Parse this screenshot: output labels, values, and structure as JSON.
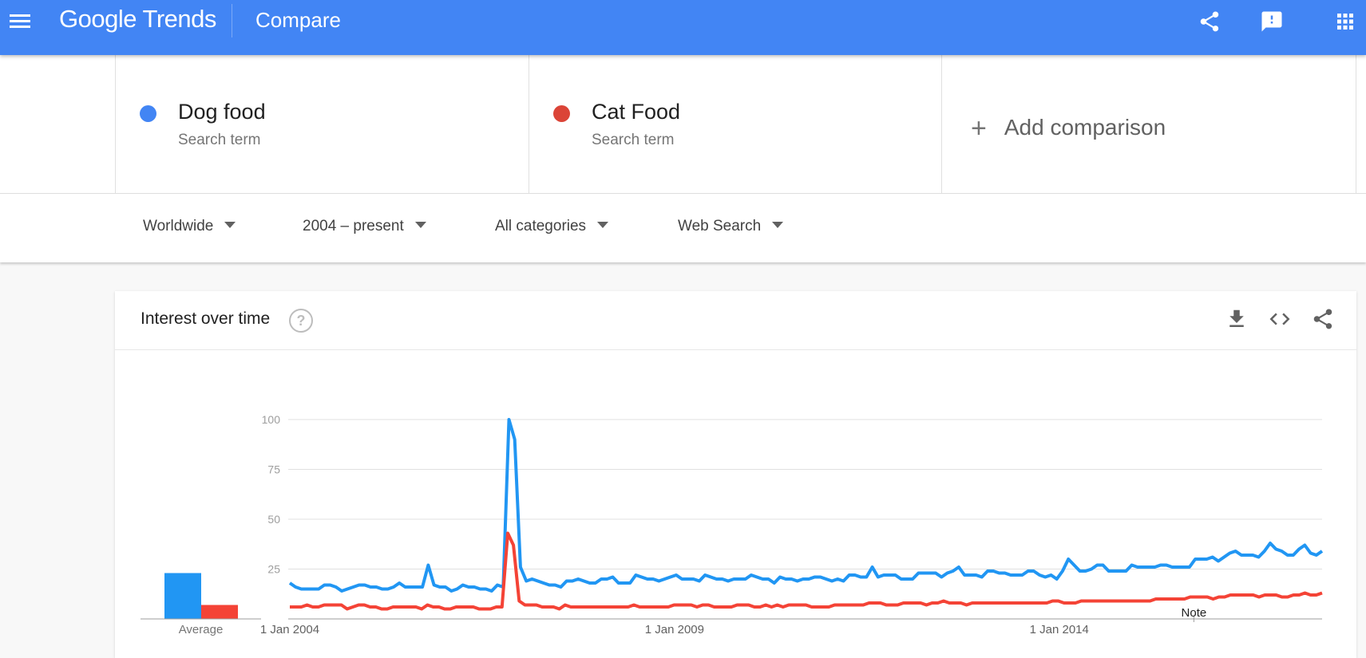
{
  "header": {
    "logo_google": "Google",
    "logo_trends": "Trends",
    "title": "Compare",
    "icons": [
      "menu-icon",
      "share-icon",
      "feedback-icon",
      "apps-icon"
    ]
  },
  "terms": [
    {
      "name": "Dog food",
      "subtitle": "Search term",
      "color": "#4285f4"
    },
    {
      "name": "Cat Food",
      "subtitle": "Search term",
      "color": "#db4437"
    }
  ],
  "add_comparison": {
    "plus": "+",
    "label": "Add comparison"
  },
  "filters": [
    {
      "label": "Worldwide"
    },
    {
      "label": "2004 – present"
    },
    {
      "label": "All categories"
    },
    {
      "label": "Web Search"
    }
  ],
  "card": {
    "title": "Interest over time",
    "help_glyph": "?",
    "icons": [
      "download-icon",
      "embed-icon",
      "share-icon"
    ]
  },
  "chart_data": {
    "type": "line",
    "ylim": [
      0,
      100
    ],
    "yticks": [
      25,
      50,
      75,
      100
    ],
    "grid": true,
    "x_range": [
      "2004-01",
      "2017-06"
    ],
    "xticks": [
      {
        "date": "2004-01",
        "label": "1 Jan 2004"
      },
      {
        "date": "2009-01",
        "label": "1 Jan 2009"
      },
      {
        "date": "2014-01",
        "label": "1 Jan 2014"
      }
    ],
    "annotation": {
      "date": "2015-10",
      "label": "Note"
    },
    "average": {
      "label": "Average",
      "values": [
        23,
        7
      ]
    },
    "series": [
      {
        "color": "#2196f3",
        "values": [
          18,
          16,
          15,
          15,
          15,
          15,
          17,
          17,
          16,
          14,
          15,
          16,
          17,
          17,
          16,
          16,
          15,
          15,
          16,
          18,
          16,
          16,
          16,
          16,
          27,
          17,
          16,
          16,
          14,
          15,
          17,
          16,
          16,
          15,
          15,
          14,
          17,
          16,
          100,
          90,
          26,
          19,
          20,
          19,
          18,
          17,
          17,
          16,
          19,
          19,
          20,
          19,
          18,
          18,
          20,
          20,
          21,
          18,
          18,
          18,
          22,
          21,
          20,
          20,
          19,
          20,
          21,
          22,
          20,
          20,
          20,
          19,
          22,
          21,
          20,
          20,
          19,
          20,
          20,
          20,
          22,
          21,
          20,
          20,
          18,
          21,
          20,
          20,
          19,
          20,
          20,
          21,
          21,
          20,
          19,
          20,
          19,
          22,
          22,
          21,
          21,
          26,
          21,
          22,
          22,
          22,
          20,
          20,
          20,
          23,
          23,
          23,
          23,
          21,
          23,
          24,
          26,
          22,
          22,
          22,
          21,
          24,
          24,
          23,
          23,
          22,
          22,
          22,
          24,
          24,
          22,
          21,
          22,
          20,
          24,
          30,
          27,
          24,
          24,
          25,
          27,
          27,
          24,
          24,
          24,
          24,
          27,
          26,
          26,
          26,
          26,
          27,
          27,
          26,
          26,
          26,
          26,
          30,
          30,
          30,
          31,
          29,
          31,
          33,
          34,
          32,
          32,
          32,
          31,
          34,
          38,
          35,
          34,
          32,
          32,
          35,
          37,
          33,
          32,
          34
        ]
      },
      {
        "color": "#f44336",
        "values": [
          6,
          6,
          6,
          7,
          6,
          6,
          7,
          7,
          7,
          7,
          5,
          6,
          7,
          7,
          6,
          6,
          5,
          5,
          6,
          6,
          6,
          6,
          6,
          5,
          7,
          6,
          6,
          5,
          5,
          6,
          6,
          6,
          6,
          5,
          5,
          5,
          6,
          6,
          43,
          37,
          9,
          7,
          7,
          7,
          6,
          6,
          6,
          5,
          7,
          6,
          6,
          6,
          6,
          6,
          6,
          6,
          6,
          6,
          6,
          6,
          7,
          6,
          6,
          6,
          6,
          6,
          6,
          7,
          7,
          7,
          7,
          6,
          7,
          7,
          6,
          6,
          6,
          6,
          7,
          7,
          7,
          6,
          6,
          7,
          6,
          7,
          6,
          7,
          7,
          7,
          7,
          6,
          6,
          6,
          6,
          7,
          7,
          7,
          7,
          7,
          7,
          8,
          8,
          8,
          7,
          7,
          7,
          8,
          8,
          8,
          8,
          7,
          8,
          8,
          9,
          8,
          8,
          8,
          7,
          8,
          8,
          8,
          8,
          8,
          8,
          8,
          8,
          8,
          8,
          8,
          8,
          8,
          8,
          9,
          9,
          8,
          8,
          8,
          9,
          9,
          9,
          9,
          9,
          9,
          9,
          9,
          9,
          9,
          9,
          9,
          9,
          10,
          10,
          10,
          10,
          10,
          10,
          11,
          11,
          11,
          11,
          10,
          11,
          11,
          12,
          12,
          12,
          12,
          12,
          11,
          12,
          12,
          12,
          11,
          11,
          12,
          12,
          13,
          12,
          12,
          13
        ]
      }
    ]
  }
}
